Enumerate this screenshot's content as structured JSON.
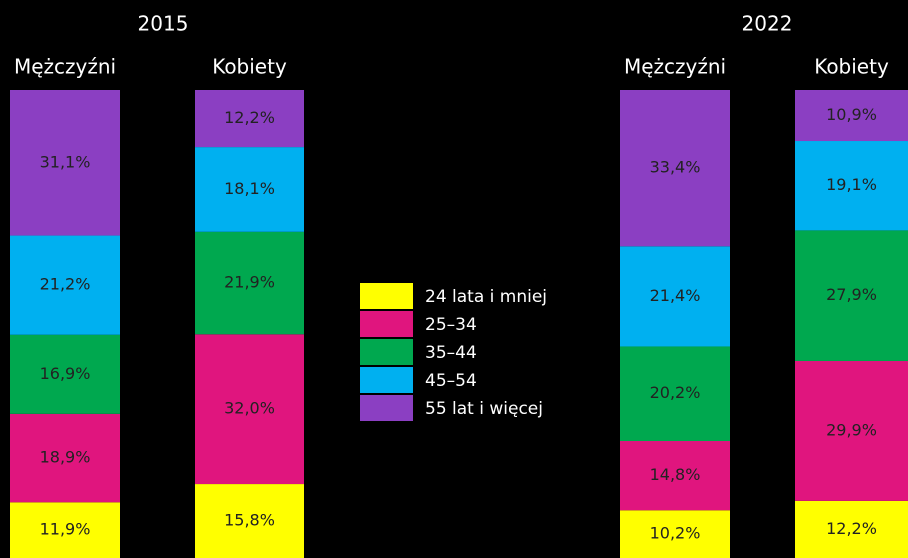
{
  "chart_data": {
    "type": "bar",
    "stacked": true,
    "groups": [
      "2015",
      "2022"
    ],
    "categories": [
      "Mężczyźni",
      "Kobiety",
      "Mężczyźni",
      "Kobiety"
    ],
    "ylim": [
      0,
      100
    ],
    "legend": "center",
    "series": [
      {
        "name": "24 lata i mniej",
        "color": "#ffff00",
        "values": [
          11.9,
          15.8,
          10.2,
          12.2
        ],
        "value_labels": [
          "11,9%",
          "15,8%",
          "10,2%",
          "12,2%"
        ]
      },
      {
        "name": "25–34",
        "color": "#e0157e",
        "values": [
          18.9,
          32.0,
          14.8,
          29.9
        ],
        "value_labels": [
          "18,9%",
          "32,0%",
          "14,8%",
          "29,9%"
        ]
      },
      {
        "name": "35–44",
        "color": "#00a84f",
        "values": [
          16.9,
          21.9,
          20.2,
          27.9
        ],
        "value_labels": [
          "16,9%",
          "21,9%",
          "20,2%",
          "27,9%"
        ]
      },
      {
        "name": "45–54",
        "color": "#00b0f0",
        "values": [
          21.2,
          18.1,
          21.4,
          19.1
        ],
        "value_labels": [
          "21,2%",
          "18,1%",
          "21,4%",
          "19,1%"
        ]
      },
      {
        "name": "55 lat i więcej",
        "color": "#8b3fc2",
        "values": [
          31.1,
          12.2,
          33.4,
          10.9
        ],
        "value_labels": [
          "31,1%",
          "12,2%",
          "33,4%",
          "10,9%"
        ]
      }
    ]
  }
}
